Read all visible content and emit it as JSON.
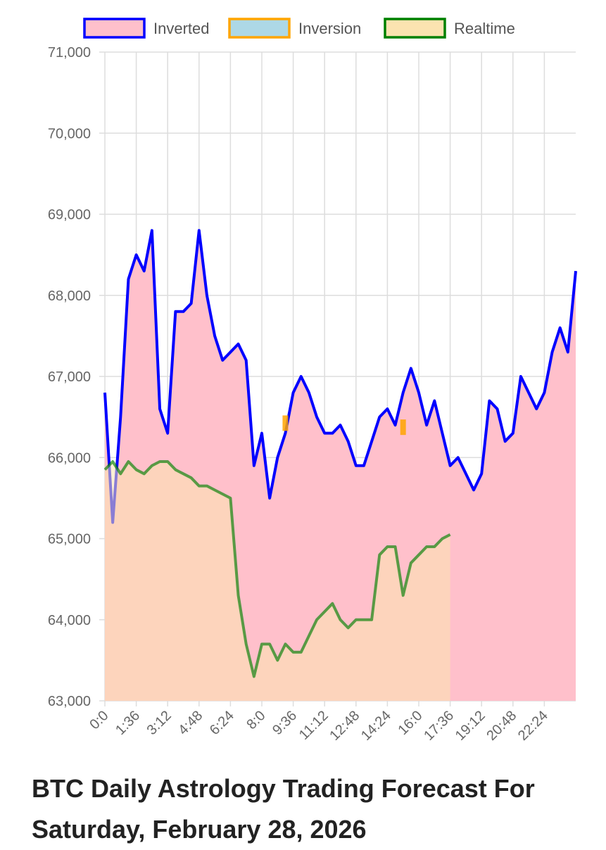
{
  "chart_data": {
    "type": "area",
    "title": "BTC Daily Astrology Trading Forecast For Saturday, February 28, 2026",
    "x": [
      0,
      24,
      48,
      72,
      96,
      120,
      144,
      168,
      192,
      216,
      240,
      264,
      288,
      312,
      336,
      360,
      384,
      408,
      432,
      456,
      480,
      504,
      528,
      552,
      576,
      600,
      624,
      648,
      672,
      696,
      720,
      744,
      768,
      792,
      816,
      840,
      864,
      888,
      912,
      936,
      960,
      984,
      1008,
      1032,
      1056,
      1080,
      1104,
      1128,
      1152,
      1176,
      1200,
      1224,
      1248,
      1272,
      1296,
      1320,
      1344,
      1368,
      1392,
      1416,
      1440
    ],
    "series": [
      {
        "name": "Inverted",
        "color": "#0000ff",
        "fill": "#ffc0cb",
        "values": [
          66800,
          65200,
          66500,
          68200,
          68500,
          68300,
          68800,
          66600,
          66300,
          67800,
          67800,
          67900,
          68800,
          68000,
          67500,
          67200,
          67300,
          67400,
          67200,
          65900,
          66300,
          65500,
          66000,
          66300,
          66800,
          67000,
          66800,
          66500,
          66300,
          66300,
          66400,
          66200,
          65900,
          65900,
          66200,
          66500,
          66600,
          66400,
          66800,
          67100,
          66800,
          66400,
          66700,
          66300,
          65900,
          66000,
          65800,
          65600,
          65800,
          66700,
          66600,
          66200,
          66300,
          67000,
          66800,
          66600,
          66800,
          67300,
          67600,
          67300,
          68300
        ]
      },
      {
        "name": "Inversion",
        "color": "#ffa500",
        "fill": "#add8e6",
        "values": [
          null,
          null,
          null,
          null,
          null,
          null,
          null,
          null,
          null,
          null,
          null,
          null,
          null,
          null,
          null,
          null,
          null,
          null,
          null,
          null,
          null,
          null,
          null,
          66450,
          null,
          null,
          null,
          null,
          null,
          null,
          null,
          null,
          null,
          null,
          null,
          null,
          null,
          null,
          66400,
          null,
          null,
          null,
          null,
          null,
          null,
          null,
          null,
          null,
          null,
          null,
          null,
          null,
          null,
          null,
          null,
          null,
          null,
          null,
          null,
          null,
          null
        ]
      },
      {
        "name": "Realtime",
        "color": "#008000",
        "fill": "#fbe3b0",
        "values": [
          65850,
          65950,
          65800,
          65950,
          65850,
          65800,
          65900,
          65950,
          65950,
          65850,
          65800,
          65750,
          65650,
          65650,
          65600,
          65550,
          65500,
          64300,
          63700,
          63300,
          63700,
          63700,
          63500,
          63700,
          63600,
          63600,
          63800,
          64000,
          64100,
          64200,
          64000,
          63900,
          64000,
          64000,
          64000,
          64800,
          64900,
          64900,
          64300,
          64700,
          64800,
          64900,
          64900,
          65000,
          65050,
          null,
          null,
          null,
          null,
          null,
          null,
          null,
          null,
          null,
          null,
          null,
          null,
          null,
          null,
          null,
          null
        ]
      }
    ],
    "xlim": [
      0,
      1440
    ],
    "xticks": [
      {
        "value": 0,
        "label": "0:0"
      },
      {
        "value": 96,
        "label": "1:36"
      },
      {
        "value": 192,
        "label": "3:12"
      },
      {
        "value": 288,
        "label": "4:48"
      },
      {
        "value": 384,
        "label": "6:24"
      },
      {
        "value": 480,
        "label": "8:0"
      },
      {
        "value": 576,
        "label": "9:36"
      },
      {
        "value": 672,
        "label": "11:12"
      },
      {
        "value": 768,
        "label": "12:48"
      },
      {
        "value": 864,
        "label": "14:24"
      },
      {
        "value": 960,
        "label": "16:0"
      },
      {
        "value": 1056,
        "label": "17:36"
      },
      {
        "value": 1152,
        "label": "19:12"
      },
      {
        "value": 1248,
        "label": "20:48"
      },
      {
        "value": 1344,
        "label": "22:24"
      }
    ],
    "ylim": [
      63000,
      71000
    ],
    "yticks": [
      {
        "value": 63000,
        "label": "63,000"
      },
      {
        "value": 64000,
        "label": "64,000"
      },
      {
        "value": 65000,
        "label": "65,000"
      },
      {
        "value": 66000,
        "label": "66,000"
      },
      {
        "value": 67000,
        "label": "67,000"
      },
      {
        "value": 68000,
        "label": "68,000"
      },
      {
        "value": 69000,
        "label": "69,000"
      },
      {
        "value": 70000,
        "label": "70,000"
      },
      {
        "value": 71000,
        "label": "71,000"
      }
    ],
    "grid": true,
    "legend": "top"
  }
}
